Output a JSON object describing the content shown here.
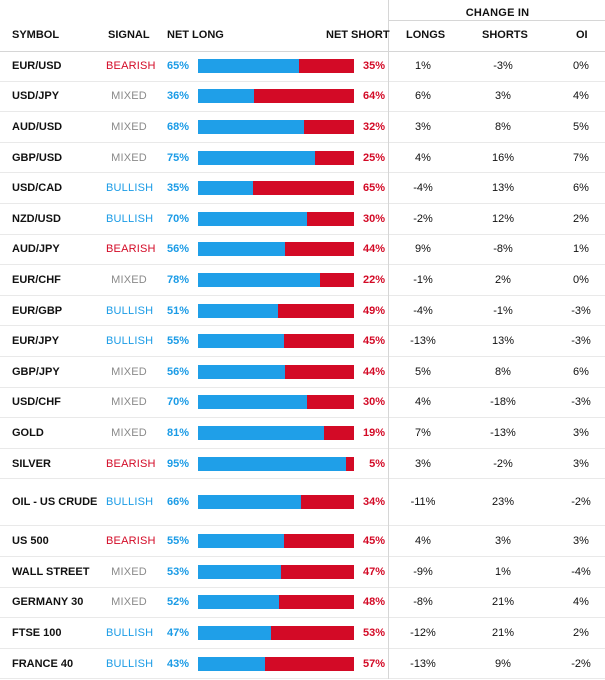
{
  "header": {
    "change_in": "CHANGE IN",
    "symbol": "SYMBOL",
    "signal": "SIGNAL",
    "net_long": "NET LONG",
    "net_short": "NET SHORT",
    "longs": "LONGS",
    "shorts": "SHORTS",
    "oi": "OI"
  },
  "colors": {
    "blue": "#1f9fe8",
    "red": "#d30a26",
    "bullish": "#1a9be6",
    "bearish": "#d30a26",
    "mixed": "#8a8a8a"
  },
  "rows": [
    {
      "symbol": "EUR/USD",
      "signal": "BEARISH",
      "net_long": "65%",
      "net_short": "35%",
      "long_pct": 65,
      "longs": "1%",
      "shorts": "-3%",
      "oi": "0%"
    },
    {
      "symbol": "USD/JPY",
      "signal": "MIXED",
      "net_long": "36%",
      "net_short": "64%",
      "long_pct": 36,
      "longs": "6%",
      "shorts": "3%",
      "oi": "4%"
    },
    {
      "symbol": "AUD/USD",
      "signal": "MIXED",
      "net_long": "68%",
      "net_short": "32%",
      "long_pct": 68,
      "longs": "3%",
      "shorts": "8%",
      "oi": "5%"
    },
    {
      "symbol": "GBP/USD",
      "signal": "MIXED",
      "net_long": "75%",
      "net_short": "25%",
      "long_pct": 75,
      "longs": "4%",
      "shorts": "16%",
      "oi": "7%"
    },
    {
      "symbol": "USD/CAD",
      "signal": "BULLISH",
      "net_long": "35%",
      "net_short": "65%",
      "long_pct": 35,
      "longs": "-4%",
      "shorts": "13%",
      "oi": "6%"
    },
    {
      "symbol": "NZD/USD",
      "signal": "BULLISH",
      "net_long": "70%",
      "net_short": "30%",
      "long_pct": 70,
      "longs": "-2%",
      "shorts": "12%",
      "oi": "2%"
    },
    {
      "symbol": "AUD/JPY",
      "signal": "BEARISH",
      "net_long": "56%",
      "net_short": "44%",
      "long_pct": 56,
      "longs": "9%",
      "shorts": "-8%",
      "oi": "1%"
    },
    {
      "symbol": "EUR/CHF",
      "signal": "MIXED",
      "net_long": "78%",
      "net_short": "22%",
      "long_pct": 78,
      "longs": "-1%",
      "shorts": "2%",
      "oi": "0%"
    },
    {
      "symbol": "EUR/GBP",
      "signal": "BULLISH",
      "net_long": "51%",
      "net_short": "49%",
      "long_pct": 51,
      "longs": "-4%",
      "shorts": "-1%",
      "oi": "-3%"
    },
    {
      "symbol": "EUR/JPY",
      "signal": "BULLISH",
      "net_long": "55%",
      "net_short": "45%",
      "long_pct": 55,
      "longs": "-13%",
      "shorts": "13%",
      "oi": "-3%"
    },
    {
      "symbol": "GBP/JPY",
      "signal": "MIXED",
      "net_long": "56%",
      "net_short": "44%",
      "long_pct": 56,
      "longs": "5%",
      "shorts": "8%",
      "oi": "6%"
    },
    {
      "symbol": "USD/CHF",
      "signal": "MIXED",
      "net_long": "70%",
      "net_short": "30%",
      "long_pct": 70,
      "longs": "4%",
      "shorts": "-18%",
      "oi": "-3%"
    },
    {
      "symbol": "GOLD",
      "signal": "MIXED",
      "net_long": "81%",
      "net_short": "19%",
      "long_pct": 81,
      "longs": "7%",
      "shorts": "-13%",
      "oi": "3%"
    },
    {
      "symbol": "SILVER",
      "signal": "BEARISH",
      "net_long": "95%",
      "net_short": "5%",
      "long_pct": 95,
      "longs": "3%",
      "shorts": "-2%",
      "oi": "3%"
    },
    {
      "symbol": "OIL - US CRUDE",
      "signal": "BULLISH",
      "net_long": "66%",
      "net_short": "34%",
      "long_pct": 66,
      "longs": "-11%",
      "shorts": "23%",
      "oi": "-2%"
    },
    {
      "symbol": "US 500",
      "signal": "BEARISH",
      "net_long": "55%",
      "net_short": "45%",
      "long_pct": 55,
      "longs": "4%",
      "shorts": "3%",
      "oi": "3%"
    },
    {
      "symbol": "WALL STREET",
      "signal": "MIXED",
      "net_long": "53%",
      "net_short": "47%",
      "long_pct": 53,
      "longs": "-9%",
      "shorts": "1%",
      "oi": "-4%"
    },
    {
      "symbol": "GERMANY 30",
      "signal": "MIXED",
      "net_long": "52%",
      "net_short": "48%",
      "long_pct": 52,
      "longs": "-8%",
      "shorts": "21%",
      "oi": "4%"
    },
    {
      "symbol": "FTSE 100",
      "signal": "BULLISH",
      "net_long": "47%",
      "net_short": "53%",
      "long_pct": 47,
      "longs": "-12%",
      "shorts": "21%",
      "oi": "2%"
    },
    {
      "symbol": "FRANCE 40",
      "signal": "BULLISH",
      "net_long": "43%",
      "net_short": "57%",
      "long_pct": 43,
      "longs": "-13%",
      "shorts": "9%",
      "oi": "-2%"
    }
  ]
}
